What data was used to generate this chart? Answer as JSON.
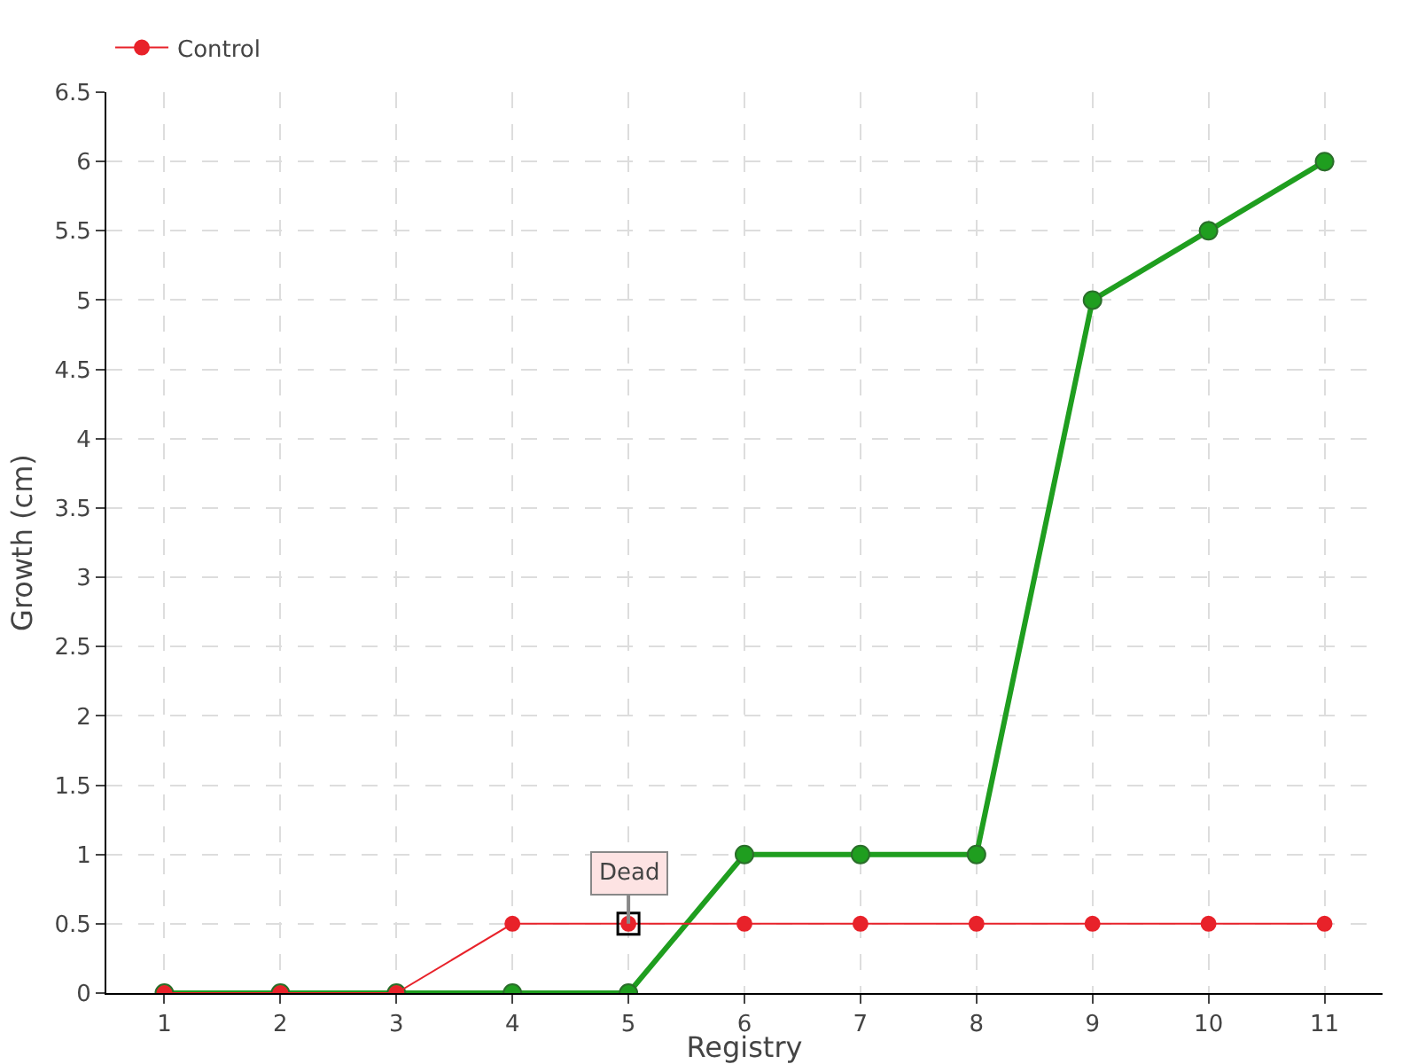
{
  "chart_data": {
    "type": "line",
    "xlabel": "Registry",
    "ylabel": "Growth (cm)",
    "categories": [
      "1",
      "2",
      "3",
      "4",
      "5",
      "6",
      "7",
      "8",
      "9",
      "10",
      "11"
    ],
    "series": [
      {
        "color": "#1f9e1f",
        "values": [
          0,
          0,
          0,
          0,
          0,
          1,
          1,
          1,
          5,
          5.5,
          6
        ]
      },
      {
        "name": "Control",
        "color": "#e8222a",
        "values": [
          0,
          0,
          0,
          0.5,
          0.5,
          0.5,
          0.5,
          0.5,
          0.5,
          0.5,
          0.5
        ]
      }
    ],
    "annotations": [
      {
        "text": "Dead",
        "x": "5",
        "y": 0.5
      }
    ],
    "ylim": [
      0,
      6.5
    ],
    "yticks": [
      0,
      0.5,
      1,
      1.5,
      2,
      2.5,
      3,
      3.5,
      4,
      4.5,
      5,
      5.5,
      6,
      6.5
    ],
    "grid": true,
    "legend": "top left",
    "marker": "circle",
    "line_style": "solid"
  }
}
